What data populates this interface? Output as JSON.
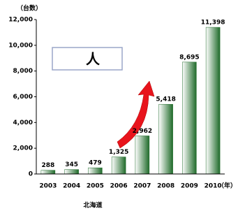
{
  "chart_data": {
    "type": "bar",
    "y_unit": "（台数）",
    "x_unit": "（年）",
    "caption": "北海道",
    "annotation": "人",
    "categories": [
      "2003",
      "2004",
      "2005",
      "2006",
      "2007",
      "2008",
      "2009",
      "2010"
    ],
    "values": [
      288,
      345,
      479,
      1325,
      2962,
      5418,
      8695,
      11398
    ],
    "value_labels": [
      "288",
      "345",
      "479",
      "1,325",
      "2,962",
      "5,418",
      "8,695",
      "11,398"
    ],
    "color": "#1f6b2a",
    "ylim": [
      0,
      12000
    ],
    "yticks": [
      0,
      {
        "value": 2000,
        "label": "2,000"
      },
      {
        "value": 4000,
        "label": "4,000"
      },
      {
        "value": 6000,
        "label": "6,000"
      },
      {
        "value": 8000,
        "label": "8,000"
      },
      {
        "value": 10000,
        "label": "10,000"
      },
      {
        "value": 12000,
        "label": "12,000"
      }
    ]
  }
}
